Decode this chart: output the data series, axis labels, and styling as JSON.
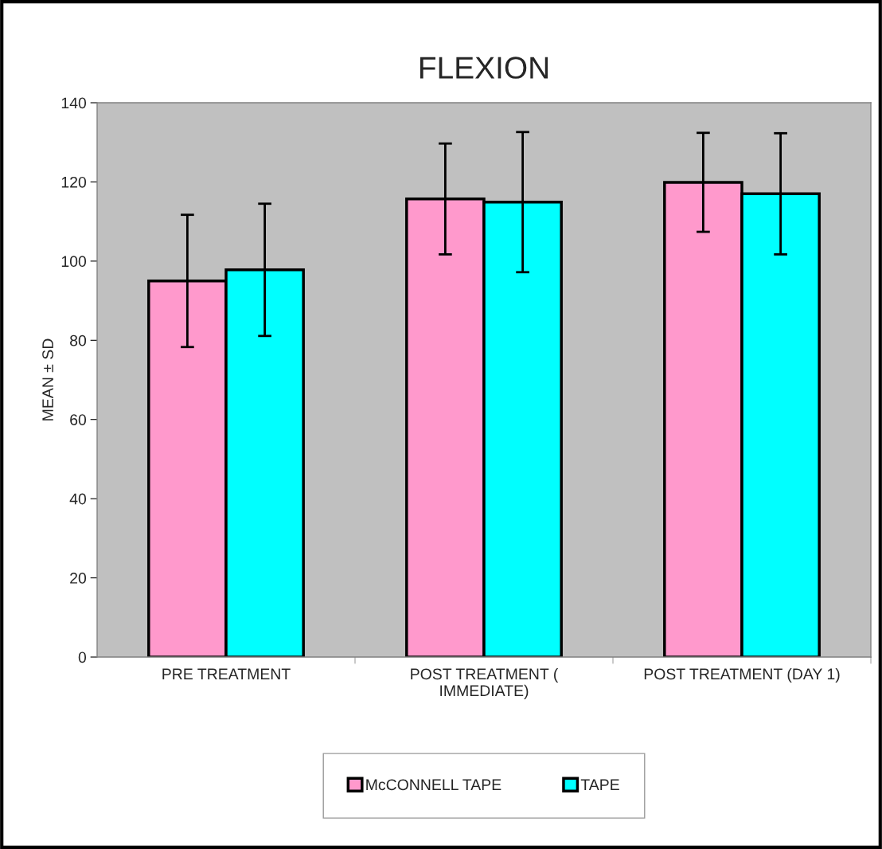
{
  "chart_data": {
    "type": "bar",
    "title": "FLEXION",
    "ylabel": "MEAN ± SD",
    "categories": [
      "PRE TREATMENT",
      "POST TREATMENT ( IMMEDIATE)",
      "POST TREATMENT (DAY 1)"
    ],
    "series": [
      {
        "name": "McCONNELL TAPE",
        "color": "#ff99cc",
        "values": [
          95,
          115.7,
          119.9
        ],
        "errors": [
          16.7,
          14,
          12.5
        ]
      },
      {
        "name": "TAPE",
        "color": "#00ffff",
        "values": [
          97.8,
          114.9,
          117
        ],
        "errors": [
          16.7,
          17.7,
          15.3
        ]
      }
    ],
    "ylim": [
      0,
      140
    ],
    "yticks": [
      0,
      20,
      40,
      60,
      80,
      100,
      120,
      140
    ],
    "grid": false,
    "legend": "bottom"
  }
}
